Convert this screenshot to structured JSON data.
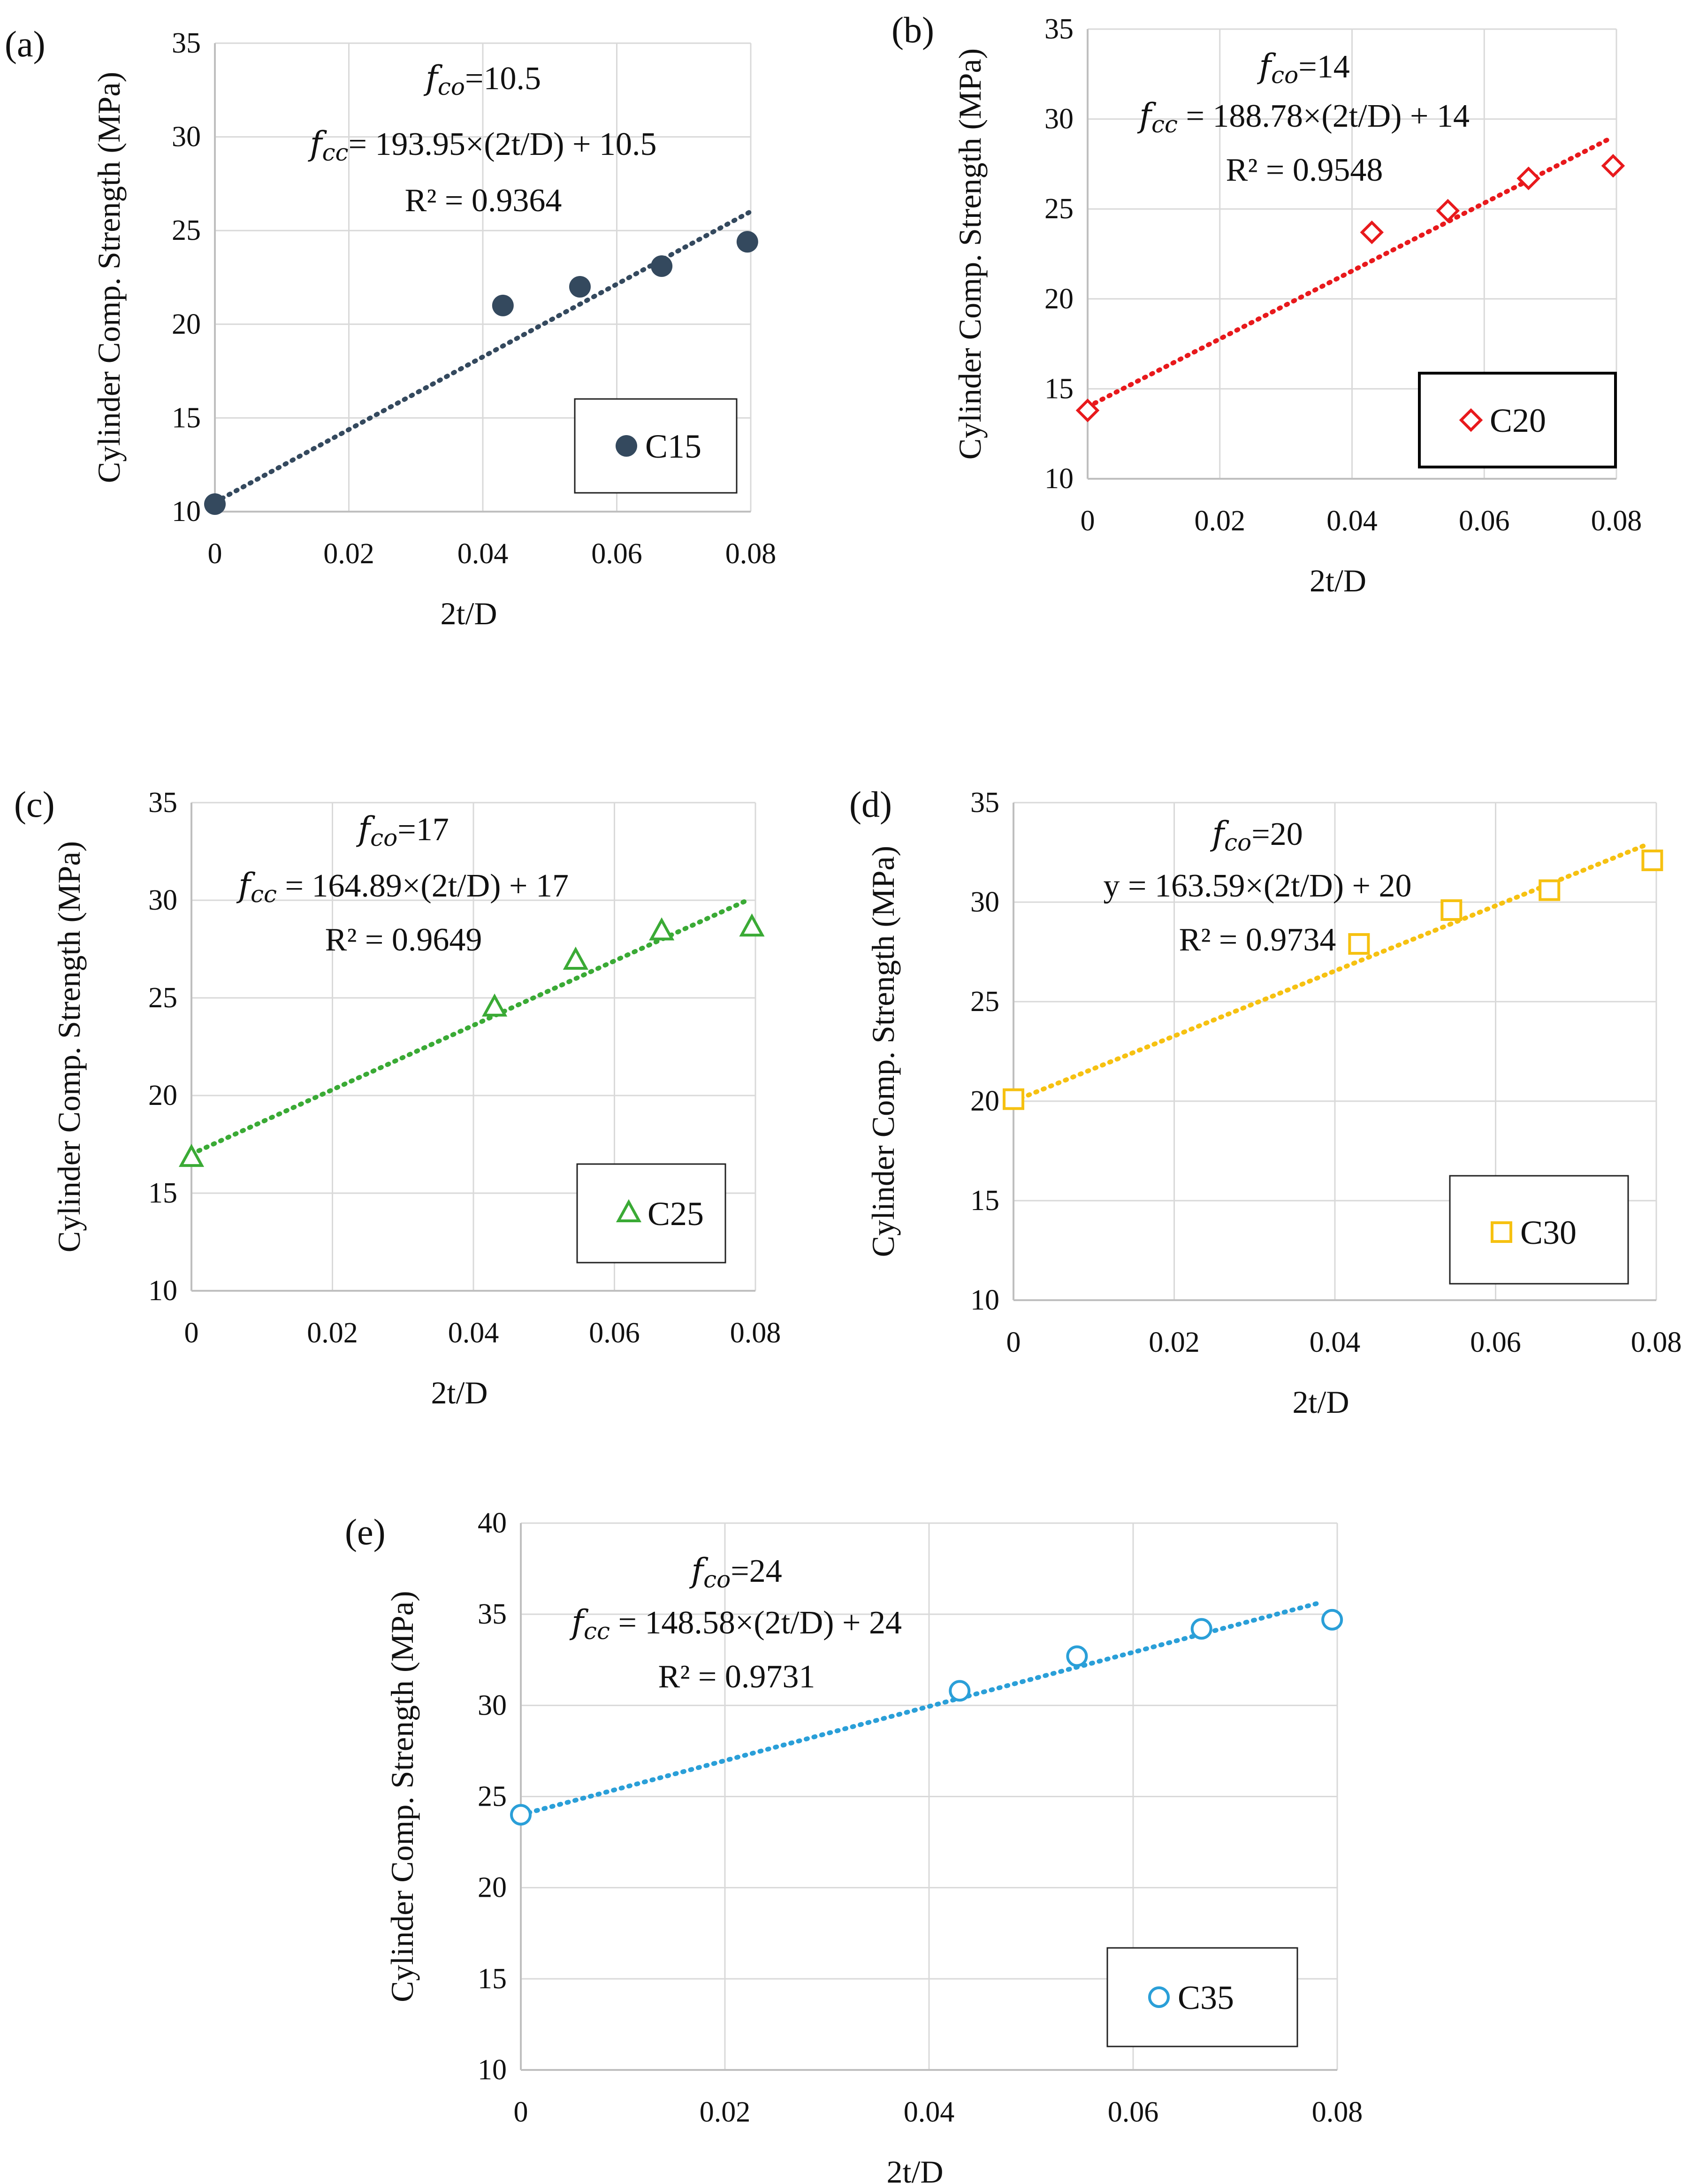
{
  "figure": {
    "panels": [
      {
        "id": "a",
        "label": "(a)",
        "series_name": "C15",
        "color": "#34495e",
        "marker": "circle-filled",
        "ann": {
          "fco": "f",
          "fco_sub": "co",
          "fco_rest": "=10.5",
          "eq_lhs": "f",
          "eq_lhs_sub": "cc",
          "eq_rhs": "= 193.95×(2t/D) + 10.5",
          "r2": "R² = 0.9364"
        }
      },
      {
        "id": "b",
        "label": "(b)",
        "series_name": "C20",
        "color": "#e8191c",
        "marker": "diamond-open",
        "ann": {
          "fco": "f",
          "fco_sub": "co",
          "fco_rest": "=14",
          "eq_lhs": "f",
          "eq_lhs_sub": "cc",
          "eq_rhs": " = 188.78×(2t/D) + 14",
          "r2": "R² = 0.9548"
        }
      },
      {
        "id": "c",
        "label": "(c)",
        "series_name": "C25",
        "color": "#3aaa35",
        "marker": "triangle-open",
        "ann": {
          "fco": "f",
          "fco_sub": "co",
          "fco_rest": "=17",
          "eq_lhs": "f",
          "eq_lhs_sub": "cc",
          "eq_rhs": " = 164.89×(2t/D) + 17",
          "r2": "R² = 0.9649"
        }
      },
      {
        "id": "d",
        "label": "(d)",
        "series_name": "C30",
        "color": "#f6c111",
        "marker": "square-open",
        "ann": {
          "fco": "f",
          "fco_sub": "co",
          "fco_rest": "=20",
          "eq_lhs": "y",
          "eq_lhs_sub": "",
          "eq_rhs": " = 163.59×(2t/D) + 20",
          "r2": "R² = 0.9734"
        }
      },
      {
        "id": "e",
        "label": "(e)",
        "series_name": "C35",
        "color": "#2a9fd8",
        "marker": "circle-open",
        "ann": {
          "fco": "f",
          "fco_sub": "co",
          "fco_rest": "=24",
          "eq_lhs": "f",
          "eq_lhs_sub": "cc",
          "eq_rhs": " = 148.58×(2t/D) + 24",
          "r2": "R² = 0.9731"
        }
      }
    ]
  },
  "chart_data": [
    {
      "type": "scatter",
      "title": "(a)",
      "xlabel": "2t/D",
      "ylabel": "Cylinder Comp. Strength (MPa)",
      "xlim": [
        0,
        0.08
      ],
      "ylim": [
        10,
        35
      ],
      "xticks": [
        "0",
        "0.02",
        "0.04",
        "0.06",
        "0.08"
      ],
      "yticks": [
        "10",
        "15",
        "20",
        "25",
        "30",
        "35"
      ],
      "legend": "bottom-right",
      "series": [
        {
          "name": "C15",
          "x": [
            0,
            0.043,
            0.0545,
            0.0667,
            0.0795
          ],
          "y": [
            10.4,
            21.0,
            22.0,
            23.1,
            24.4
          ]
        }
      ],
      "trendline": {
        "slope": 193.95,
        "intercept": 10.5,
        "x_range": [
          0,
          0.08
        ],
        "r2": 0.9364
      }
    },
    {
      "type": "scatter",
      "title": "(b)",
      "xlabel": "2t/D",
      "ylabel": "Cylinder Comp. Strength (MPa)",
      "xlim": [
        0,
        0.08
      ],
      "ylim": [
        10,
        35
      ],
      "xticks": [
        "0",
        "0.02",
        "0.04",
        "0.06",
        "0.08"
      ],
      "yticks": [
        "10",
        "15",
        "20",
        "25",
        "30",
        "35"
      ],
      "legend": "bottom-right",
      "series": [
        {
          "name": "C20",
          "x": [
            0,
            0.043,
            0.0545,
            0.0667,
            0.0795
          ],
          "y": [
            13.8,
            23.7,
            24.9,
            26.7,
            27.4
          ]
        }
      ],
      "trendline": {
        "slope": 188.78,
        "intercept": 14,
        "x_range": [
          0,
          0.079
        ],
        "r2": 0.9548
      }
    },
    {
      "type": "scatter",
      "title": "(c)",
      "xlabel": "2t/D",
      "ylabel": "Cylinder Comp. Strength (MPa)",
      "xlim": [
        0,
        0.08
      ],
      "ylim": [
        10,
        35
      ],
      "xticks": [
        "0",
        "0.02",
        "0.04",
        "0.06",
        "0.08"
      ],
      "yticks": [
        "10",
        "15",
        "20",
        "25",
        "30",
        "35"
      ],
      "legend": "bottom-right",
      "series": [
        {
          "name": "C25",
          "x": [
            0,
            0.043,
            0.0545,
            0.0667,
            0.0795
          ],
          "y": [
            16.8,
            24.5,
            26.9,
            28.4,
            28.6
          ]
        }
      ],
      "trendline": {
        "slope": 164.89,
        "intercept": 17,
        "x_range": [
          0,
          0.079
        ],
        "r2": 0.9649
      }
    },
    {
      "type": "scatter",
      "title": "(d)",
      "xlabel": "2t/D",
      "ylabel": "Cylinder Comp. Strength (MPa)",
      "xlim": [
        0,
        0.08
      ],
      "ylim": [
        10,
        35
      ],
      "xticks": [
        "0",
        "0.02",
        "0.04",
        "0.06",
        "0.08"
      ],
      "yticks": [
        "10",
        "15",
        "20",
        "25",
        "30",
        "35"
      ],
      "legend": "bottom-right",
      "series": [
        {
          "name": "C30",
          "x": [
            0,
            0.043,
            0.0545,
            0.0667,
            0.0795
          ],
          "y": [
            20.1,
            27.9,
            29.6,
            30.6,
            32.1
          ]
        }
      ],
      "trendline": {
        "slope": 163.59,
        "intercept": 20,
        "x_range": [
          0,
          0.079
        ],
        "r2": 0.9734
      }
    },
    {
      "type": "scatter",
      "title": "(e)",
      "xlabel": "2t/D",
      "ylabel": "Cylinder Comp. Strength (MPa)",
      "xlim": [
        0,
        0.08
      ],
      "ylim": [
        10,
        40
      ],
      "xticks": [
        "0",
        "0.02",
        "0.04",
        "0.06",
        "0.08"
      ],
      "yticks": [
        "10",
        "15",
        "20",
        "25",
        "30",
        "35",
        "40"
      ],
      "legend": "bottom-right",
      "series": [
        {
          "name": "C35",
          "x": [
            0,
            0.043,
            0.0545,
            0.0667,
            0.0795
          ],
          "y": [
            24.0,
            30.8,
            32.7,
            34.2,
            34.7
          ]
        }
      ],
      "trendline": {
        "slope": 148.58,
        "intercept": 24,
        "x_range": [
          0,
          0.078
        ],
        "r2": 0.9731
      }
    }
  ]
}
